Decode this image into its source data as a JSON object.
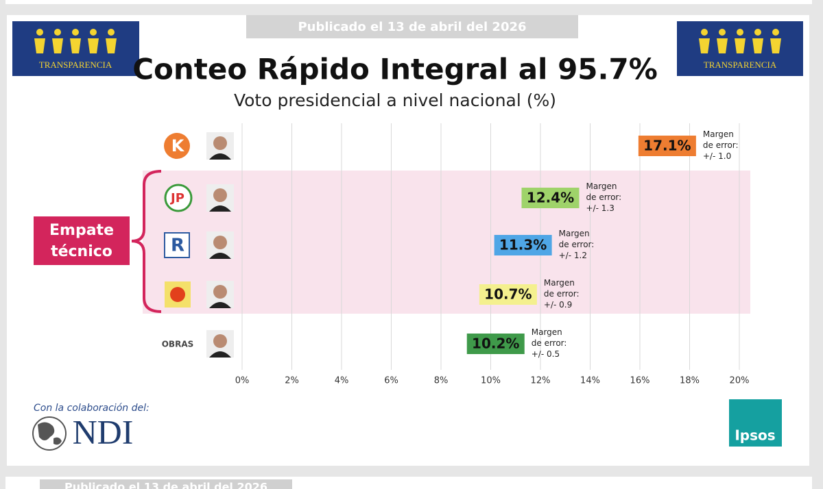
{
  "header": {
    "published": "Publicado el 13 de abril del 2026",
    "logo_text": "TRANSPARENCIA"
  },
  "chart_data": {
    "type": "dot",
    "title": "Conteo Rápido Integral al 95.7%",
    "subtitle": "Voto presidencial a nivel nacional (%)",
    "categories": [
      "K",
      "JP",
      "R",
      null,
      "OBRAS"
    ],
    "values": [
      17.1,
      12.4,
      11.3,
      10.7,
      10.2
    ],
    "value_labels": [
      "17.1%",
      "12.4%",
      "11.3%",
      "10.7%",
      "10.2%"
    ],
    "colors": [
      "#ee7d31",
      "#9fd36a",
      "#4fa6e6",
      "#f4f08e",
      "#3f9a4a"
    ],
    "error_title": "Margen de error:",
    "error_labels": [
      "+/- 1.0",
      "+/- 1.3",
      "+/- 1.2",
      "+/- 0.9",
      "+/- 0.5"
    ],
    "annotation": "Empate técnico",
    "xlim": [
      0,
      20
    ],
    "xticks": [
      {
        "value": 0,
        "label": "0%"
      },
      {
        "value": 2,
        "label": "2%"
      },
      {
        "value": 4,
        "label": "4%"
      },
      {
        "value": 6,
        "label": "6%"
      },
      {
        "value": 8,
        "label": "8%"
      },
      {
        "value": 10,
        "label": "10%"
      },
      {
        "value": 12,
        "label": "12%"
      },
      {
        "value": 14,
        "label": "14%"
      },
      {
        "value": 16,
        "label": "16%"
      },
      {
        "value": 18,
        "label": "18%"
      },
      {
        "value": 20,
        "label": "20%"
      }
    ],
    "grid": true
  },
  "footer": {
    "collaboration": "Con la colaboración del:",
    "ndi": "NDI",
    "ipsos": "Ipsos"
  }
}
